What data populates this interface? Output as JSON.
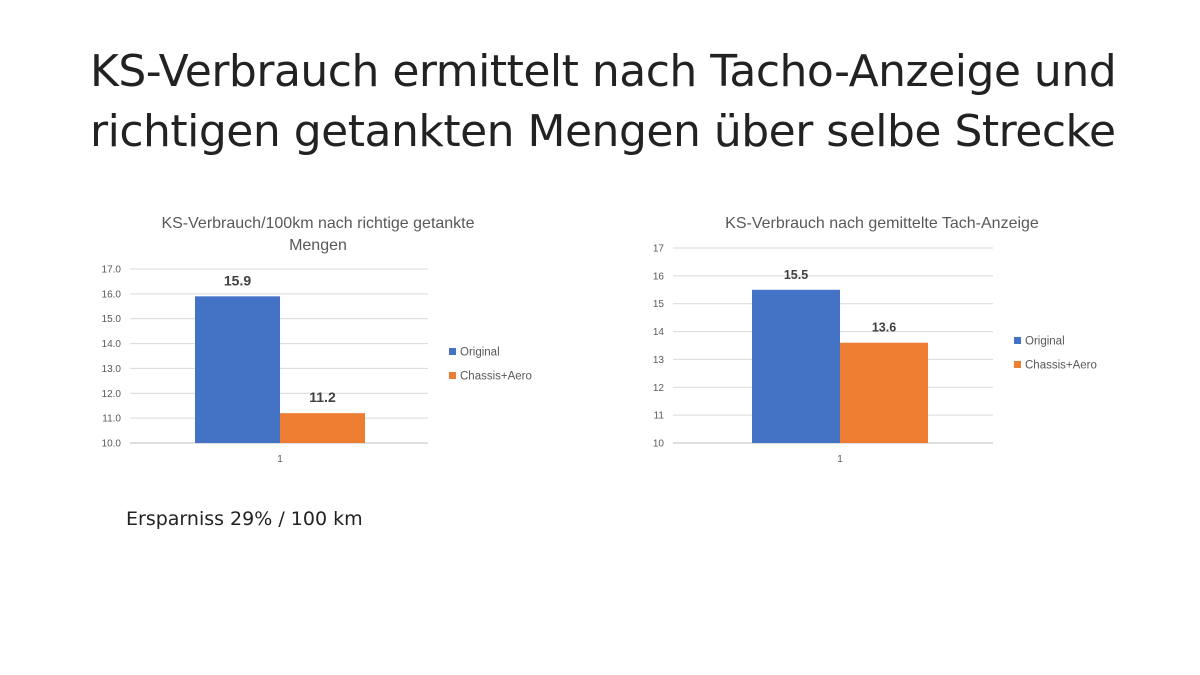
{
  "slide": {
    "title": "KS-Verbrauch ermittelt nach Tacho-Anzeige und richtigen getankten Mengen über selbe Strecke",
    "note": "Ersparniss 29% / 100 km"
  },
  "chart_data": [
    {
      "type": "bar",
      "title_lines": [
        "KS-Verbrauch/100km  nach richtige getankte",
        "Mengen"
      ],
      "categories": [
        "1"
      ],
      "series": [
        {
          "name": "Original",
          "values": [
            15.9
          ],
          "color": "#4472C4"
        },
        {
          "name": "Chassis+Aero",
          "values": [
            11.2
          ],
          "color": "#ED7D31"
        }
      ],
      "ylim": [
        10,
        17
      ],
      "yticks": [
        "10.0",
        "11.0",
        "12.0",
        "13.0",
        "14.0",
        "15.0",
        "16.0",
        "17.0"
      ],
      "data_labels": [
        "15.9",
        "11.2"
      ],
      "grid": true,
      "legend": "right"
    },
    {
      "type": "bar",
      "title_lines": [
        "KS-Verbrauch nach gemittelte Tach-Anzeige"
      ],
      "categories": [
        "1"
      ],
      "series": [
        {
          "name": "Original",
          "values": [
            15.5
          ],
          "color": "#4472C4"
        },
        {
          "name": "Chassis+Aero",
          "values": [
            13.6
          ],
          "color": "#ED7D31"
        }
      ],
      "ylim": [
        10,
        17
      ],
      "yticks": [
        "10",
        "11",
        "12",
        "13",
        "14",
        "15",
        "16",
        "17"
      ],
      "data_labels": [
        "15.5",
        "13.6"
      ],
      "grid": true,
      "legend": "right"
    }
  ]
}
